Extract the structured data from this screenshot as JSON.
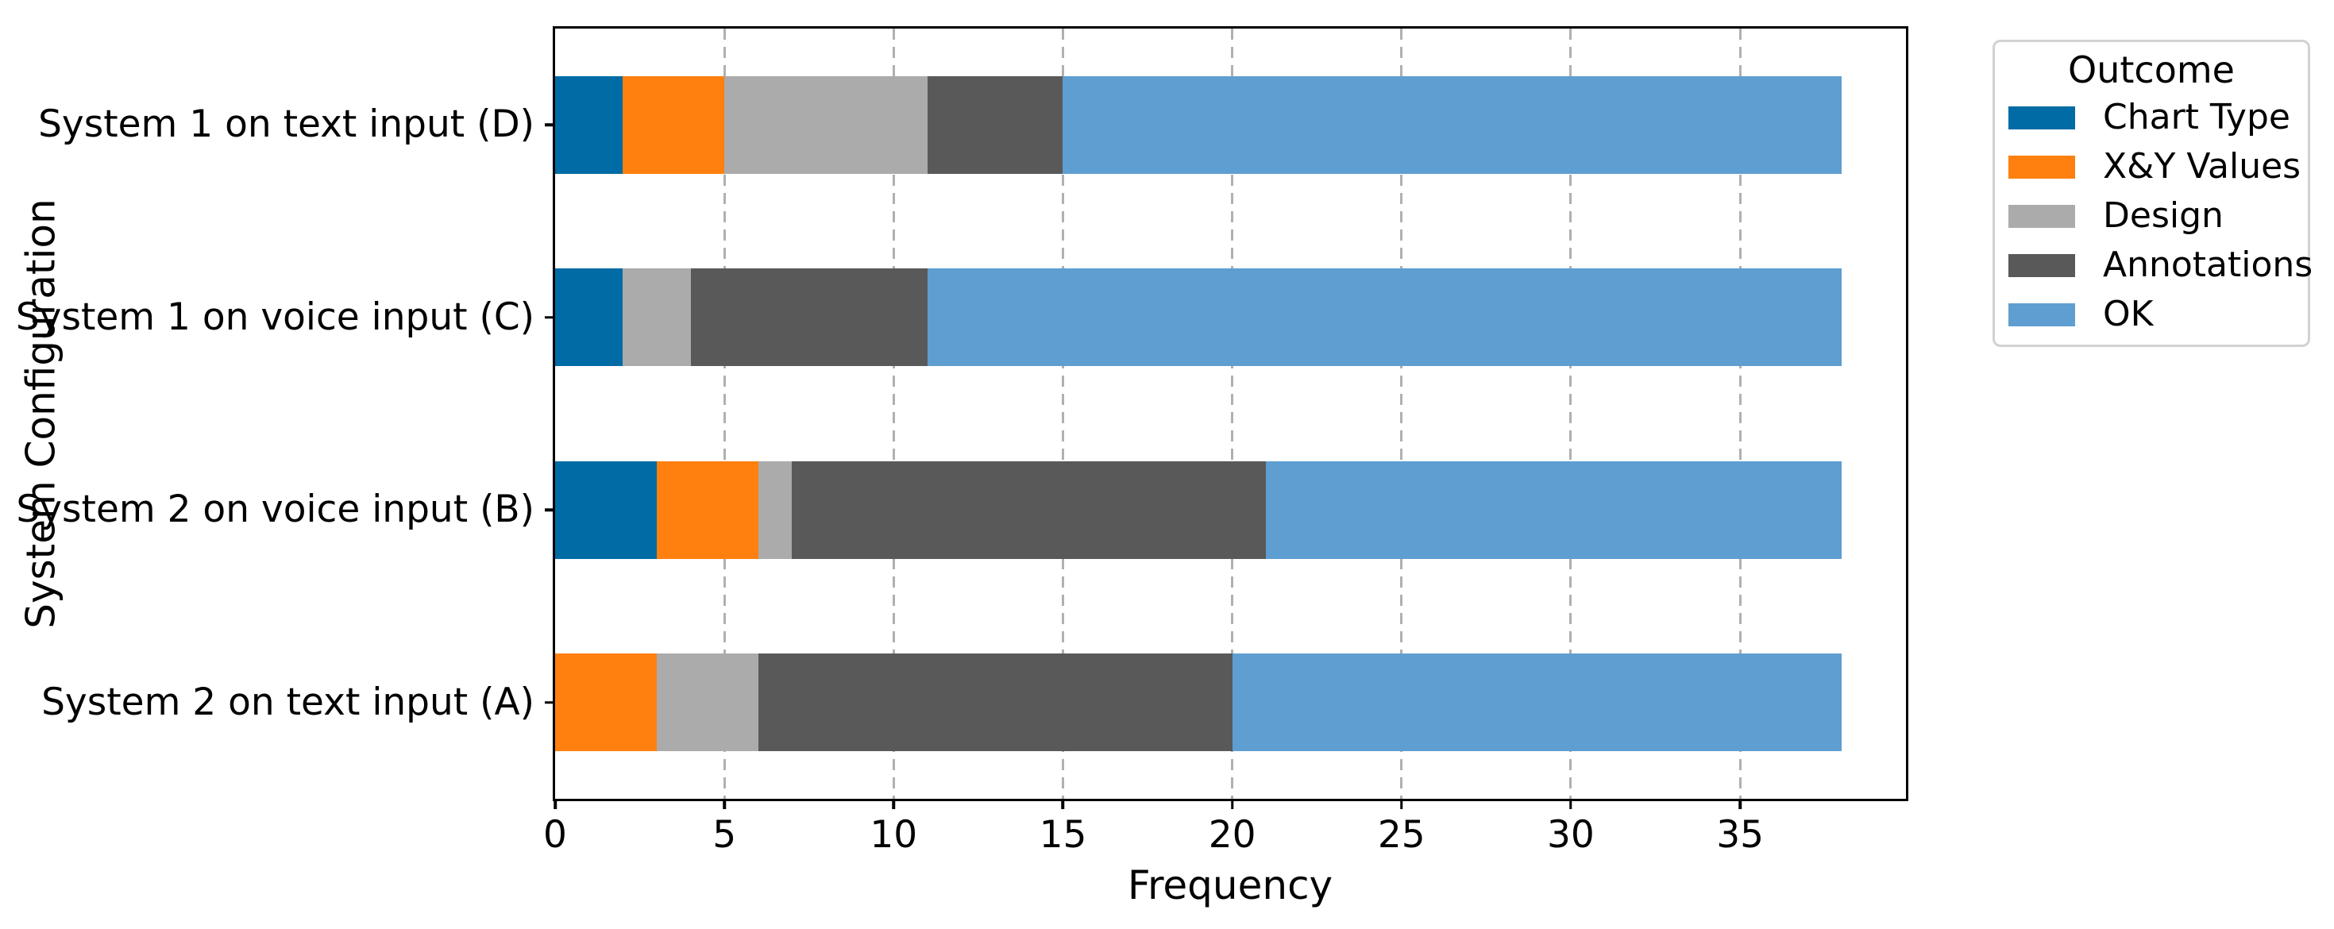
{
  "chart_data": {
    "type": "bar",
    "orientation": "horizontal",
    "stacked": true,
    "title": "",
    "xlabel": "Frequency",
    "ylabel": "System Configuration",
    "categories": [
      "System 1 on text input (D)",
      "System 1 on voice input (C)",
      "System 2 on voice input (B)",
      "System 2 on text input (A)"
    ],
    "series": [
      {
        "name": "Chart Type",
        "color": "#006BA4",
        "values": [
          2,
          2,
          3,
          0
        ]
      },
      {
        "name": "X&Y Values",
        "color": "#FF800E",
        "values": [
          3,
          0,
          3,
          3
        ]
      },
      {
        "name": "Design",
        "color": "#ABABAB",
        "values": [
          6,
          2,
          1,
          3
        ]
      },
      {
        "name": "Annotations",
        "color": "#595959",
        "values": [
          4,
          7,
          14,
          14
        ]
      },
      {
        "name": "OK",
        "color": "#5F9ED1",
        "values": [
          23,
          27,
          17,
          18
        ]
      }
    ],
    "bar_totals": [
      38,
      38,
      38,
      38
    ],
    "xlim": [
      0,
      39.9
    ],
    "xticks": [
      0,
      5,
      10,
      15,
      20,
      25,
      30,
      35
    ],
    "grid": {
      "axis": "x",
      "style": "dashed",
      "color": "#b0b0b0"
    },
    "legend": {
      "title": "Outcome",
      "position": "outside-upper-right"
    },
    "bar_height_fraction": 0.5
  }
}
